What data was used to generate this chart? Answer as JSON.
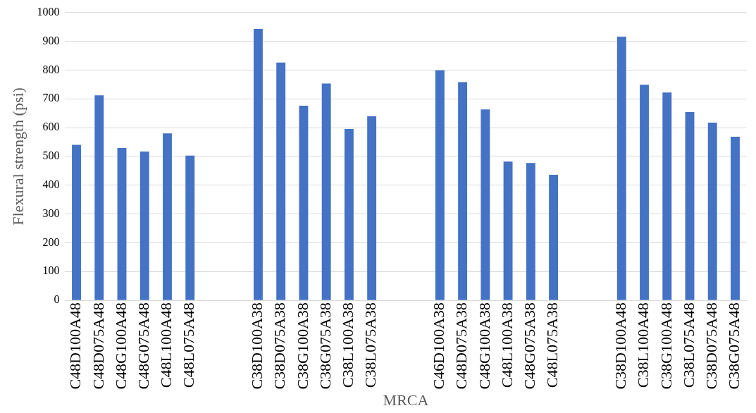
{
  "chart_data": {
    "type": "bar",
    "xlabel": "MRCA",
    "ylabel": "Flexural strength (psi)",
    "categories": [
      "C48D100A48",
      "C48D075A48",
      "C48G100A48",
      "C48G075A48",
      "C48L100A48",
      "C48L075A48",
      null,
      null,
      "C38D100A38",
      "C38D075A38",
      "C38G100A38",
      "C38G075A38",
      "C38L100A38",
      "C38L075A38",
      null,
      null,
      "C46D100A38",
      "C48D075A38",
      "C48G100A38",
      "C48L100A38",
      "C48G075A38",
      "C48L075A38",
      null,
      null,
      "C38D100A48",
      "C38L100A48",
      "C38G100A48",
      "C38L075A48",
      "C38D075A48",
      "C38G075A48"
    ],
    "values": [
      540,
      712,
      529,
      517,
      580,
      503,
      null,
      null,
      943,
      826,
      676,
      753,
      595,
      639,
      null,
      null,
      799,
      758,
      663,
      482,
      477,
      436,
      null,
      null,
      916,
      749,
      722,
      654,
      617,
      568
    ],
    "color": "#4472c4",
    "ylim": [
      0,
      1000
    ],
    "yticks": [
      0,
      100,
      200,
      300,
      400,
      500,
      600,
      700,
      800,
      900,
      1000
    ],
    "grid": "y"
  }
}
